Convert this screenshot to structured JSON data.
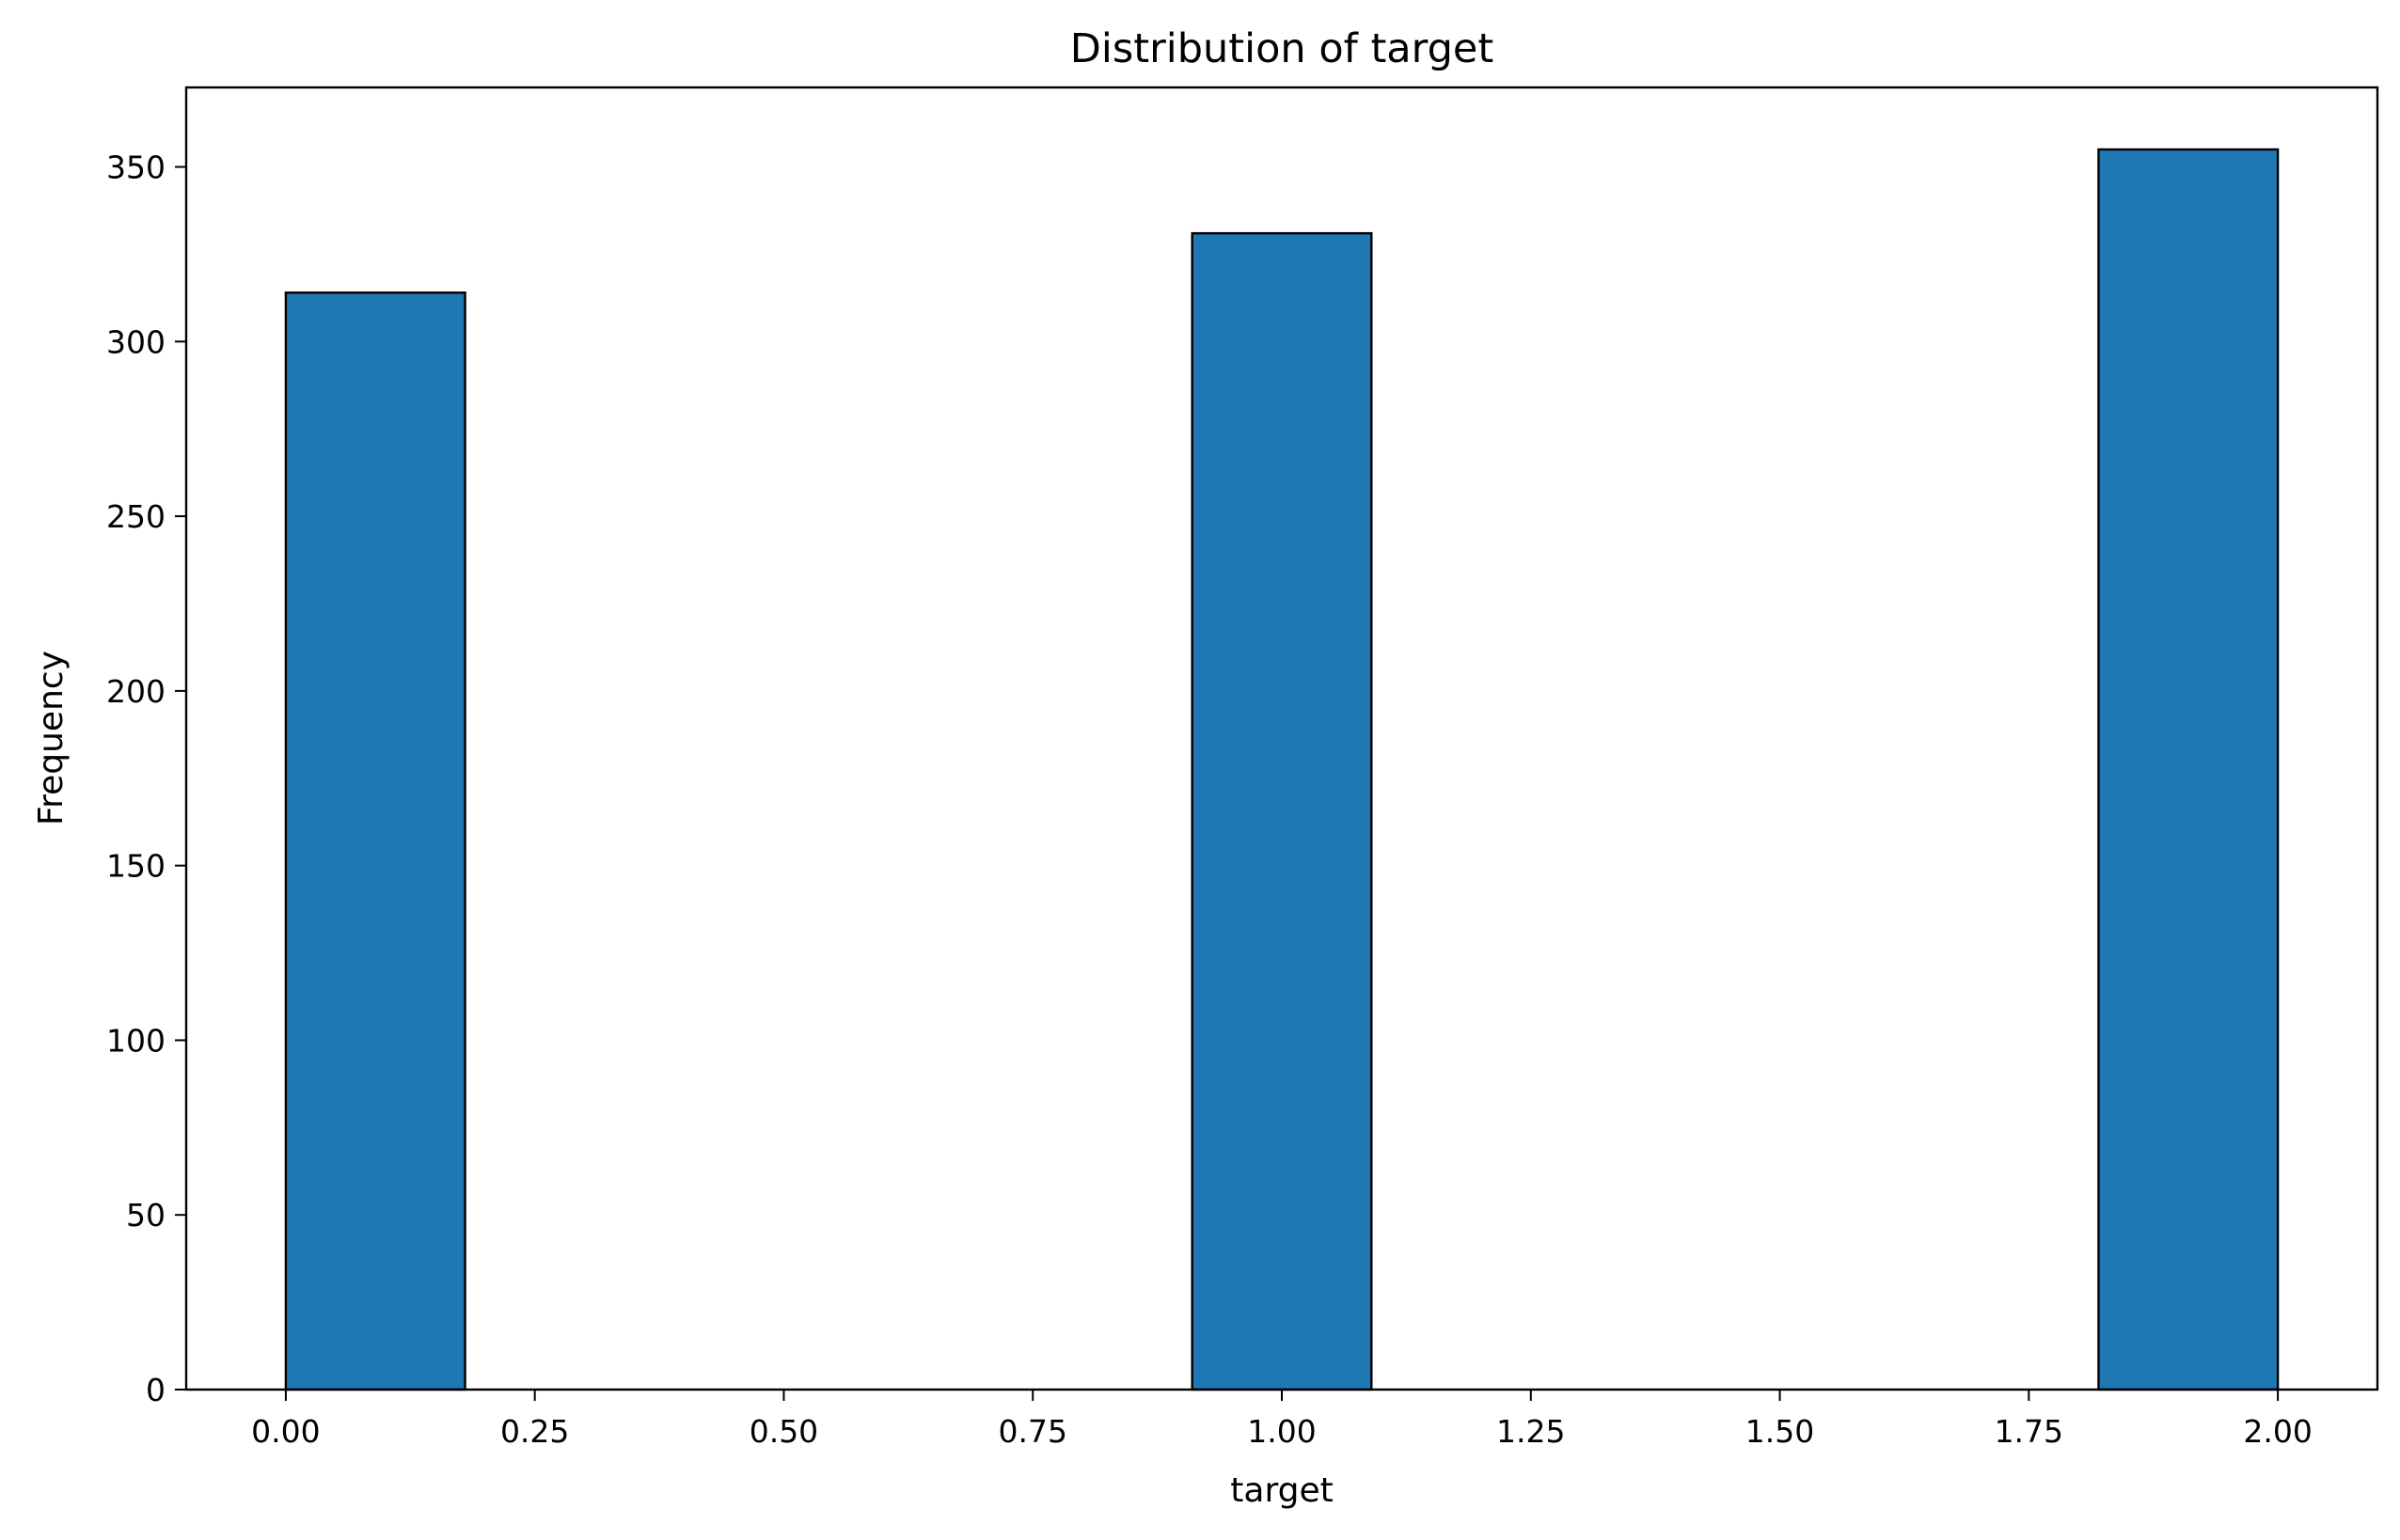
{
  "chart_data": {
    "type": "bar",
    "title": "Distribution of target",
    "xlabel": "target",
    "ylabel": "Frequency",
    "xlim": [
      -0.1,
      2.1
    ],
    "ylim": [
      0,
      372.75
    ],
    "x_ticks": [
      0.0,
      0.25,
      0.5,
      0.75,
      1.0,
      1.25,
      1.5,
      1.75,
      2.0
    ],
    "x_tick_labels": [
      "0.00",
      "0.25",
      "0.50",
      "0.75",
      "1.00",
      "1.25",
      "1.50",
      "1.75",
      "2.00"
    ],
    "y_ticks": [
      0,
      50,
      100,
      150,
      200,
      250,
      300,
      350
    ],
    "y_tick_labels": [
      "0",
      "50",
      "100",
      "150",
      "200",
      "250",
      "300",
      "350"
    ],
    "bars": [
      {
        "x0": 0.0,
        "x1": 0.18,
        "value": 314
      },
      {
        "x0": 0.91,
        "x1": 1.09,
        "value": 331
      },
      {
        "x0": 1.82,
        "x1": 2.0,
        "value": 355
      }
    ],
    "grid": false,
    "legend": "none",
    "colors": {
      "bar_fill": "#1f77b4",
      "bar_edge": "#000000"
    }
  }
}
